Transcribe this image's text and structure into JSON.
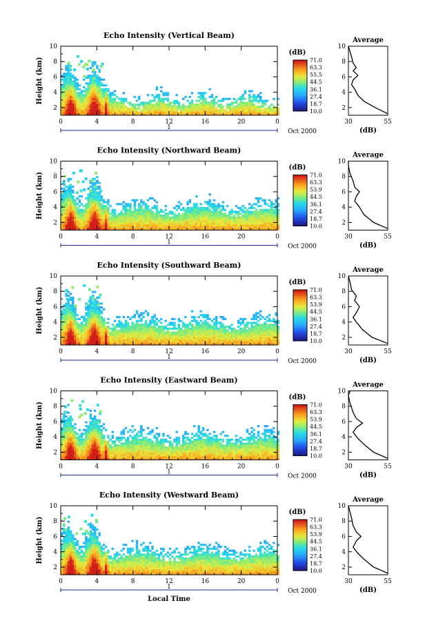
{
  "chart_data": [
    {
      "type": "heatmap",
      "title": "Echo Intensity (Vertical Beam)",
      "ylabel": "Height (km)",
      "yticks": [
        "2",
        "4",
        "6",
        "8",
        "10"
      ],
      "xticks": [
        "0",
        "4",
        "8",
        "12",
        "16",
        "20",
        "0"
      ],
      "xlim": [
        0,
        24
      ],
      "ylim": [
        1,
        10
      ],
      "day_marker": "1",
      "date_label": "Oct 2000",
      "colorbar": {
        "unit": "(dB)",
        "levels": [
          "71.0",
          "63.3",
          "55.5",
          "44.5",
          "36.1",
          "27.4",
          "18.7",
          "10.0"
        ]
      },
      "avg": {
        "title": "Average",
        "xticks": [
          "30",
          "55"
        ],
        "xlabel": "(dB)",
        "yticks": [
          "2",
          "4",
          "6",
          "8",
          "10"
        ],
        "xlim": [
          30,
          55
        ],
        "profile": [
          [
            55,
            1.2
          ],
          [
            47,
            2
          ],
          [
            40,
            2.8
          ],
          [
            36,
            3.6
          ],
          [
            34,
            4.4
          ],
          [
            32,
            5
          ],
          [
            33,
            5.6
          ],
          [
            36,
            6.2
          ],
          [
            33,
            6.8
          ],
          [
            35,
            7.2
          ],
          [
            33,
            7.8
          ],
          [
            32,
            8.6
          ],
          [
            31,
            9.3
          ],
          [
            30,
            10
          ]
        ]
      }
    },
    {
      "type": "heatmap",
      "title": "Echo Intensity (Northward Beam)",
      "ylabel": "Height (km)",
      "yticks": [
        "2",
        "4",
        "6",
        "8",
        "10"
      ],
      "xticks": [
        "0",
        "4",
        "8",
        "12",
        "16",
        "20",
        "0"
      ],
      "xlim": [
        0,
        24
      ],
      "ylim": [
        1,
        10
      ],
      "day_marker": "1",
      "date_label": "Oct 2000",
      "colorbar": {
        "unit": "(dB)",
        "levels": [
          "71.0",
          "63.3",
          "53.9",
          "44.5",
          "36.1",
          "27.4",
          "18.7",
          "10.0"
        ]
      },
      "avg": {
        "title": "Average",
        "xticks": [
          "30",
          "55"
        ],
        "xlabel": "(dB)",
        "yticks": [
          "2",
          "4",
          "6",
          "8",
          "10"
        ],
        "xlim": [
          30,
          55
        ],
        "profile": [
          [
            55,
            1.2
          ],
          [
            46,
            2
          ],
          [
            40,
            3
          ],
          [
            37,
            4
          ],
          [
            34,
            4.8
          ],
          [
            35,
            5.4
          ],
          [
            37,
            6
          ],
          [
            34,
            6.6
          ],
          [
            33,
            7.4
          ],
          [
            31,
            8.4
          ],
          [
            30,
            9.4
          ],
          [
            30,
            10
          ]
        ]
      }
    },
    {
      "type": "heatmap",
      "title": "Echo Intensity (Southward Beam)",
      "ylabel": "Height (km)",
      "yticks": [
        "2",
        "4",
        "6",
        "8",
        "10"
      ],
      "xticks": [
        "0",
        "4",
        "8",
        "12",
        "16",
        "20",
        "0"
      ],
      "xlim": [
        0,
        24
      ],
      "ylim": [
        1,
        10
      ],
      "day_marker": "1",
      "date_label": "Oct 2000",
      "colorbar": {
        "unit": "(dB)",
        "levels": [
          "71.0",
          "63.3",
          "53.9",
          "44.5",
          "36.1",
          "27.4",
          "18.7",
          "10.0"
        ]
      },
      "avg": {
        "title": "Average",
        "xticks": [
          "30",
          "55"
        ],
        "xlabel": "(dB)",
        "yticks": [
          "2",
          "4",
          "6",
          "8",
          "10"
        ],
        "xlim": [
          30,
          55
        ],
        "profile": [
          [
            55,
            1.2
          ],
          [
            45,
            2
          ],
          [
            39,
            3
          ],
          [
            35,
            4
          ],
          [
            33,
            4.6
          ],
          [
            35,
            5.2
          ],
          [
            37,
            6
          ],
          [
            34,
            6.8
          ],
          [
            35,
            7.4
          ],
          [
            32,
            8.2
          ],
          [
            31,
            9.2
          ],
          [
            30,
            10
          ]
        ]
      }
    },
    {
      "type": "heatmap",
      "title": "Echo Intensity (Eastward Beam)",
      "ylabel": "Height (km)",
      "yticks": [
        "2",
        "4",
        "6",
        "8",
        "10"
      ],
      "xticks": [
        "0",
        "4",
        "8",
        "12",
        "16",
        "20",
        "0"
      ],
      "xlim": [
        0,
        24
      ],
      "ylim": [
        1,
        10
      ],
      "day_marker": "1",
      "date_label": "Oct 2000",
      "colorbar": {
        "unit": "(dB)",
        "levels": [
          "71.0",
          "63.3",
          "53.9",
          "44.5",
          "36.1",
          "27.4",
          "18.7",
          "10.0"
        ]
      },
      "avg": {
        "title": "Average",
        "xticks": [
          "30",
          "55"
        ],
        "xlabel": "(dB)",
        "yticks": [
          "2",
          "4",
          "6",
          "8",
          "10"
        ],
        "xlim": [
          30,
          55
        ],
        "profile": [
          [
            55,
            1.2
          ],
          [
            46,
            2
          ],
          [
            40,
            3
          ],
          [
            36,
            3.8
          ],
          [
            33,
            4.6
          ],
          [
            35,
            5.2
          ],
          [
            39,
            5.8
          ],
          [
            35,
            6.4
          ],
          [
            33,
            7.2
          ],
          [
            31,
            8.4
          ],
          [
            30,
            9.4
          ],
          [
            31,
            10
          ]
        ]
      }
    },
    {
      "type": "heatmap",
      "title": "Echo Intensity (Westward Beam)",
      "ylabel": "Height (km)",
      "yticks": [
        "2",
        "4",
        "6",
        "8",
        "10"
      ],
      "xticks": [
        "0",
        "4",
        "8",
        "12",
        "16",
        "20",
        "0"
      ],
      "xlim": [
        0,
        24
      ],
      "ylim": [
        1,
        10
      ],
      "day_marker": "1",
      "date_label": "Oct 2000",
      "xlabel": "Local Time",
      "colorbar": {
        "unit": "(dB)",
        "levels": [
          "71.0",
          "63.3",
          "53.9",
          "44.5",
          "36.1",
          "27.4",
          "18.7",
          "10.0"
        ]
      },
      "avg": {
        "title": "Average",
        "xticks": [
          "30",
          "55"
        ],
        "xlabel": "(dB)",
        "yticks": [
          "2",
          "4",
          "6",
          "8",
          "10"
        ],
        "xlim": [
          30,
          55
        ],
        "profile": [
          [
            55,
            1.2
          ],
          [
            46,
            2
          ],
          [
            40,
            3
          ],
          [
            36,
            3.8
          ],
          [
            33,
            4.6
          ],
          [
            35,
            5.4
          ],
          [
            38,
            6
          ],
          [
            35,
            6.6
          ],
          [
            33,
            7.4
          ],
          [
            32,
            8.4
          ],
          [
            31,
            9.2
          ],
          [
            30,
            10
          ]
        ]
      }
    }
  ]
}
